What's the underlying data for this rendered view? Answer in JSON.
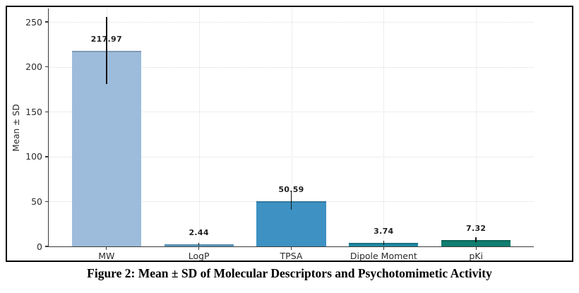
{
  "figure": {
    "caption": "Figure 2: Mean ± SD of Molecular Descriptors and Psychotomimetic Activity"
  },
  "chart_data": {
    "type": "bar",
    "title": "",
    "xlabel": "",
    "ylabel": "Mean ± SD",
    "categories": [
      "MW",
      "LogP",
      "TPSA",
      "Dipole Moment",
      "pKi"
    ],
    "values": [
      217.97,
      2.44,
      50.59,
      3.74,
      7.32
    ],
    "value_labels": [
      "217.97",
      "2.44",
      "50.59",
      "3.74",
      "7.32"
    ],
    "error_sd": [
      37.5,
      1.5,
      10.0,
      2.5,
      2.8
    ],
    "bar_colors": [
      "#9dbcdb",
      "#66abd4",
      "#3d92c3",
      "#1f8ba3",
      "#0f7d70"
    ],
    "bar_edge_color": "rgba(0,0,0,0.18)",
    "yticks": [
      0,
      50,
      100,
      150,
      200,
      250
    ],
    "ylim": [
      0,
      265
    ],
    "grid": "dotted horizontal and vertical",
    "legend": "none",
    "axis_color": "#3a3a3a",
    "grid_color": "#dcdcdc",
    "error_bar_color": "#141414"
  }
}
